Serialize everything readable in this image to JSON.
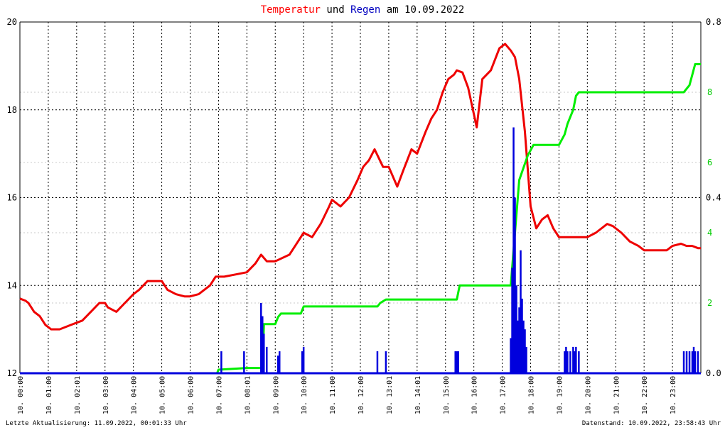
{
  "title": {
    "part1": "Temperatur",
    "part2": " und ",
    "part3": "Regen",
    "part4": " am 10.09.2022",
    "colors": {
      "part1": "#ff0000",
      "part2": "#000000",
      "part3": "#0000c0",
      "part4": "#000000"
    }
  },
  "footer": {
    "left": "Letzte Aktualisierung: 11.09.2022, 00:01:33 Uhr",
    "right": "Datenstand: 10.09.2022, 23:58:43 Uhr"
  },
  "chart_data": {
    "type": "line",
    "x_unit": "hours",
    "xlim": [
      0,
      24
    ],
    "x_tick_labels": [
      "10. 00:00",
      "10. 01:00",
      "10. 02:01",
      "10. 03:00",
      "10. 04:00",
      "10. 05:00",
      "10. 06:00",
      "10. 07:00",
      "10. 08:01",
      "10. 09:00",
      "10. 10:00",
      "10. 11:00",
      "10. 12:00",
      "10. 13:01",
      "10. 14:01",
      "10. 15:00",
      "10. 16:00",
      "10. 17:00",
      "10. 18:00",
      "10. 19:00",
      "10. 20:00",
      "10. 21:00",
      "10. 22:00",
      "10. 23:00"
    ],
    "y_left": {
      "ylim": [
        12,
        20
      ],
      "ticks": [
        "12",
        "14",
        "16",
        "18",
        "20"
      ]
    },
    "y_right_outer": {
      "ylim": [
        0,
        0.8
      ],
      "ticks": [
        "0.0",
        "0.4",
        "0.8"
      ],
      "color": "#000000"
    },
    "y_right_inner": {
      "ylim": [
        0,
        10
      ],
      "ticks": [
        "2",
        "4",
        "6",
        "8"
      ],
      "color": "#00cc00"
    },
    "grid": true,
    "series": [
      {
        "axis": "left",
        "color": "#ee0000",
        "x": [
          0.0,
          0.2,
          0.3,
          0.5,
          0.7,
          0.9,
          1.1,
          1.2,
          1.4,
          1.8,
          2.0,
          2.2,
          2.5,
          2.8,
          3.0,
          3.1,
          3.4,
          3.7,
          4.0,
          4.2,
          4.5,
          4.7,
          5.0,
          5.2,
          5.5,
          5.8,
          6.0,
          6.3,
          6.7,
          6.9,
          7.2,
          7.6,
          8.0,
          8.3,
          8.5,
          8.7,
          9.0,
          9.5,
          9.8,
          10.0,
          10.3,
          10.6,
          10.9,
          11.0,
          11.3,
          11.6,
          11.9,
          12.1,
          12.3,
          12.5,
          12.8,
          13.0,
          13.3,
          13.5,
          13.8,
          14.0,
          14.3,
          14.5,
          14.7,
          14.9,
          15.1,
          15.3,
          15.4,
          15.6,
          15.8,
          16.1,
          16.3,
          16.6,
          16.9,
          17.1,
          17.3,
          17.45,
          17.6,
          17.8,
          18.0,
          18.2,
          18.4,
          18.6,
          18.8,
          19.0,
          19.5,
          20.0,
          20.3,
          20.7,
          20.9,
          21.2,
          21.5,
          21.8,
          22.0,
          22.5,
          22.8,
          23.0,
          23.3,
          23.5,
          23.7,
          23.9,
          24.0
        ],
        "values": [
          13.7,
          13.65,
          13.6,
          13.4,
          13.3,
          13.1,
          13.0,
          13.0,
          13.0,
          13.1,
          13.15,
          13.2,
          13.4,
          13.6,
          13.6,
          13.5,
          13.4,
          13.6,
          13.8,
          13.9,
          14.1,
          14.1,
          14.1,
          13.9,
          13.8,
          13.75,
          13.75,
          13.8,
          14.0,
          14.2,
          14.2,
          14.25,
          14.3,
          14.5,
          14.7,
          14.55,
          14.55,
          14.7,
          15.0,
          15.2,
          15.1,
          15.4,
          15.8,
          15.95,
          15.8,
          16.0,
          16.4,
          16.7,
          16.85,
          17.1,
          16.7,
          16.7,
          16.25,
          16.6,
          17.1,
          17.0,
          17.5,
          17.8,
          18.0,
          18.4,
          18.7,
          18.8,
          18.9,
          18.85,
          18.5,
          17.6,
          18.7,
          18.9,
          19.4,
          19.5,
          19.35,
          19.2,
          18.7,
          17.5,
          15.8,
          15.3,
          15.5,
          15.6,
          15.3,
          15.1,
          15.1,
          15.1,
          15.2,
          15.4,
          15.35,
          15.2,
          15.0,
          14.9,
          14.8,
          14.8,
          14.8,
          14.9,
          14.95,
          14.9,
          14.9,
          14.85,
          14.85
        ]
      },
      {
        "axis": "right_inner",
        "color": "#00ee00",
        "x": [
          0,
          6.95,
          7.0,
          8.0,
          8.55,
          8.6,
          9.0,
          9.1,
          9.2,
          9.9,
          10.0,
          12.6,
          12.7,
          12.9,
          13.0,
          15.4,
          15.5,
          17.3,
          17.4,
          17.5,
          17.6,
          17.9,
          18.1,
          19.0,
          19.2,
          19.3,
          19.5,
          19.6,
          19.7,
          22.0,
          23.0,
          23.4,
          23.6,
          23.7,
          23.8,
          24.0
        ],
        "values": [
          0,
          0,
          0.1,
          0.15,
          0.15,
          1.4,
          1.4,
          1.6,
          1.7,
          1.7,
          1.9,
          1.9,
          2.0,
          2.1,
          2.1,
          2.1,
          2.5,
          2.5,
          3.5,
          4.5,
          5.5,
          6.2,
          6.5,
          6.5,
          6.8,
          7.1,
          7.5,
          7.9,
          8.0,
          8.0,
          8.0,
          8.0,
          8.2,
          8.5,
          8.8,
          8.8
        ]
      },
      {
        "axis": "right_outer",
        "color": "#0000dd",
        "type": "bar",
        "x": [
          7.1,
          7.9,
          8.5,
          8.55,
          8.6,
          8.7,
          9.1,
          9.15,
          9.95,
          10.0,
          12.6,
          12.9,
          15.35,
          15.4,
          15.45,
          17.3,
          17.35,
          17.4,
          17.45,
          17.5,
          17.55,
          17.6,
          17.65,
          17.7,
          17.75,
          17.8,
          17.85,
          19.2,
          19.25,
          19.3,
          19.4,
          19.5,
          19.55,
          19.6,
          19.7,
          23.4,
          23.5,
          23.6,
          23.7,
          23.75,
          23.8,
          23.9
        ],
        "values": [
          0.05,
          0.05,
          0.16,
          0.13,
          0.09,
          0.06,
          0.04,
          0.05,
          0.05,
          0.06,
          0.05,
          0.05,
          0.05,
          0.05,
          0.05,
          0.08,
          0.24,
          0.56,
          0.4,
          0.2,
          0.12,
          0.15,
          0.28,
          0.17,
          0.12,
          0.1,
          0.06,
          0.05,
          0.06,
          0.05,
          0.05,
          0.06,
          0.05,
          0.06,
          0.05,
          0.05,
          0.05,
          0.05,
          0.05,
          0.06,
          0.05,
          0.05
        ]
      }
    ]
  }
}
